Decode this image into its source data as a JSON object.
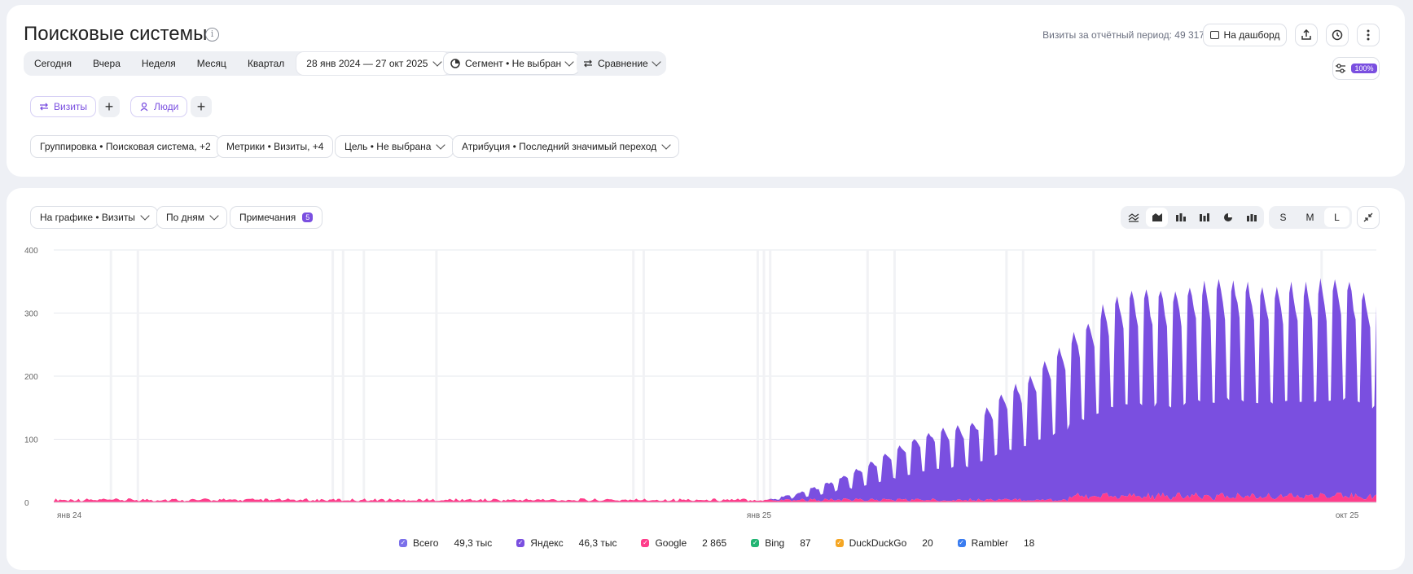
{
  "header": {
    "title": "Поисковые системы",
    "visits_total": "Визиты за отчётный период: 49 317",
    "dashboard_label": "На дашборд"
  },
  "period": {
    "items": [
      "Сегодня",
      "Вчера",
      "Неделя",
      "Месяц",
      "Квартал"
    ],
    "date_range": "28 янв 2024 — 27 окт 2025",
    "segment": "Сегмент • Не выбран",
    "compare": "Сравнение",
    "sampling_badge": "100%"
  },
  "pills": {
    "visits": "Визиты",
    "people": "Люди"
  },
  "filters": {
    "grouping": "Группировка • Поисковая система, +2",
    "metrics": "Метрики • Визиты, +4",
    "goal": "Цель • Не выбрана",
    "attribution": "Атрибуция • Последний значимый переход"
  },
  "chart_controls": {
    "on_chart": "На графике • Визиты",
    "by_days": "По дням",
    "notes": "Примечания",
    "notes_count": "5",
    "sizes": [
      "S",
      "M",
      "L"
    ],
    "active_size": "L"
  },
  "colors": {
    "yandex": "#7a4fe0",
    "google": "#ff3d8b",
    "bing": "#22b573",
    "duckduckgo": "#f5a623",
    "rambler": "#3a7cf0",
    "total": "#7b70ea"
  },
  "chart_data": {
    "type": "area",
    "stacked": true,
    "ylim": [
      0,
      400
    ],
    "yticks": [
      "400",
      "300",
      "200",
      "100",
      "0"
    ],
    "xtick_labels": [
      "янв 24",
      "янв 25",
      "окт 25"
    ],
    "x_start": "2024-01-28",
    "x_end": "2025-10-27",
    "series": [
      {
        "name": "Яндекс",
        "color": "#7a4fe0",
        "weekly_peaks": [
          {
            "week_of": "2025-01-20",
            "value": 10
          },
          {
            "week_of": "2025-02-03",
            "value": 25
          },
          {
            "week_of": "2025-02-17",
            "value": 45
          },
          {
            "week_of": "2025-03-03",
            "value": 70
          },
          {
            "week_of": "2025-03-17",
            "value": 95
          },
          {
            "week_of": "2025-03-31",
            "value": 115
          },
          {
            "week_of": "2025-04-14",
            "value": 120
          },
          {
            "week_of": "2025-04-28",
            "value": 165
          },
          {
            "week_of": "2025-05-12",
            "value": 195
          },
          {
            "week_of": "2025-05-26",
            "value": 240
          },
          {
            "week_of": "2025-06-09",
            "value": 275
          },
          {
            "week_of": "2025-06-23",
            "value": 320
          },
          {
            "week_of": "2025-07-07",
            "value": 330
          },
          {
            "week_of": "2025-07-21",
            "value": 325
          },
          {
            "week_of": "2025-08-04",
            "value": 340
          },
          {
            "week_of": "2025-08-18",
            "value": 345
          },
          {
            "week_of": "2025-09-01",
            "value": 335
          },
          {
            "week_of": "2025-09-15",
            "value": 335
          },
          {
            "week_of": "2025-09-29",
            "value": 340
          },
          {
            "week_of": "2025-10-13",
            "value": 345
          },
          {
            "week_of": "2025-10-27",
            "value": 315
          }
        ]
      },
      {
        "name": "Google",
        "color": "#ff3d8b",
        "typical_daily": {
          "2024": 5,
          "2025-h2": 12
        },
        "peak": 22
      },
      {
        "name": "Bing",
        "color": "#22b573"
      },
      {
        "name": "DuckDuckGo",
        "color": "#f5a623"
      },
      {
        "name": "Rambler",
        "color": "#3a7cf0"
      }
    ],
    "legend": [
      {
        "name": "Всего",
        "value": "49,3 тыс",
        "color": "#7b70ea"
      },
      {
        "name": "Яндекс",
        "value": "46,3 тыс",
        "color": "#7a4fe0"
      },
      {
        "name": "Google",
        "value": "2 865",
        "color": "#ff3d8b"
      },
      {
        "name": "Bing",
        "value": "87",
        "color": "#22b573"
      },
      {
        "name": "DuckDuckGo",
        "value": "20",
        "color": "#f5a623"
      },
      {
        "name": "Rambler",
        "value": "18",
        "color": "#3a7cf0"
      }
    ]
  }
}
